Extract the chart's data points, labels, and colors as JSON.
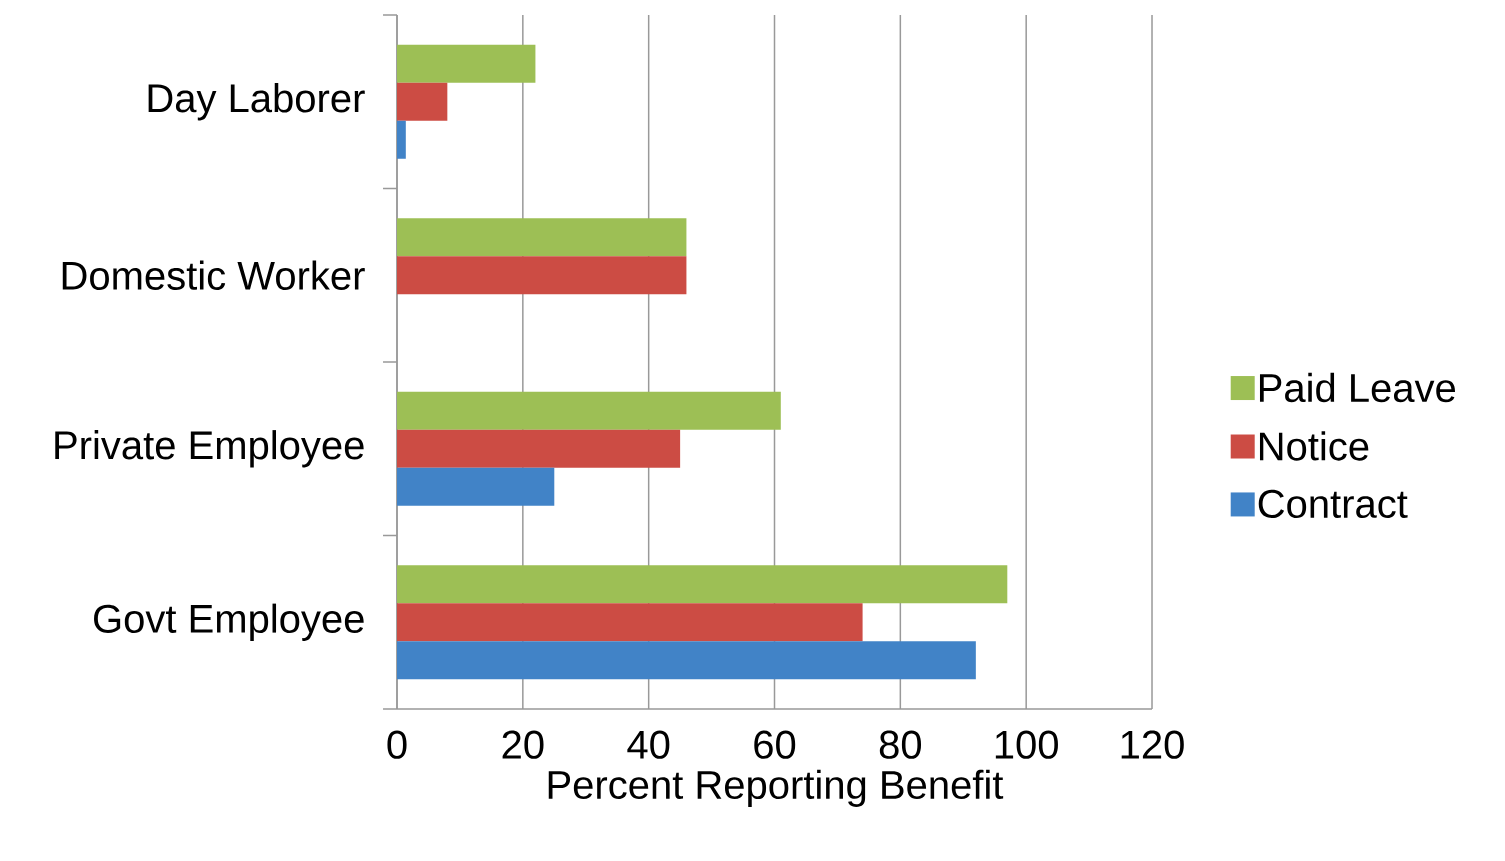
{
  "chart_data": {
    "type": "bar",
    "orientation": "horizontal",
    "categories": [
      "Day Laborer",
      "Domestic Worker",
      "Private Employee",
      "Govt Employee"
    ],
    "series": [
      {
        "name": "Paid Leave",
        "color": "#9dbf55",
        "values": [
          22,
          46,
          61,
          97
        ]
      },
      {
        "name": "Notice",
        "color": "#cc4c44",
        "values": [
          8,
          46,
          45,
          74
        ]
      },
      {
        "name": "Contract",
        "color": "#4183c7",
        "values": [
          1.4,
          0,
          25,
          92
        ]
      }
    ],
    "xlim": [
      0,
      120
    ],
    "xticks": [
      0,
      20,
      40,
      60,
      80,
      100,
      120
    ],
    "xlabel": "Percent Reporting Benefit",
    "grid": "x",
    "legend": "right"
  }
}
